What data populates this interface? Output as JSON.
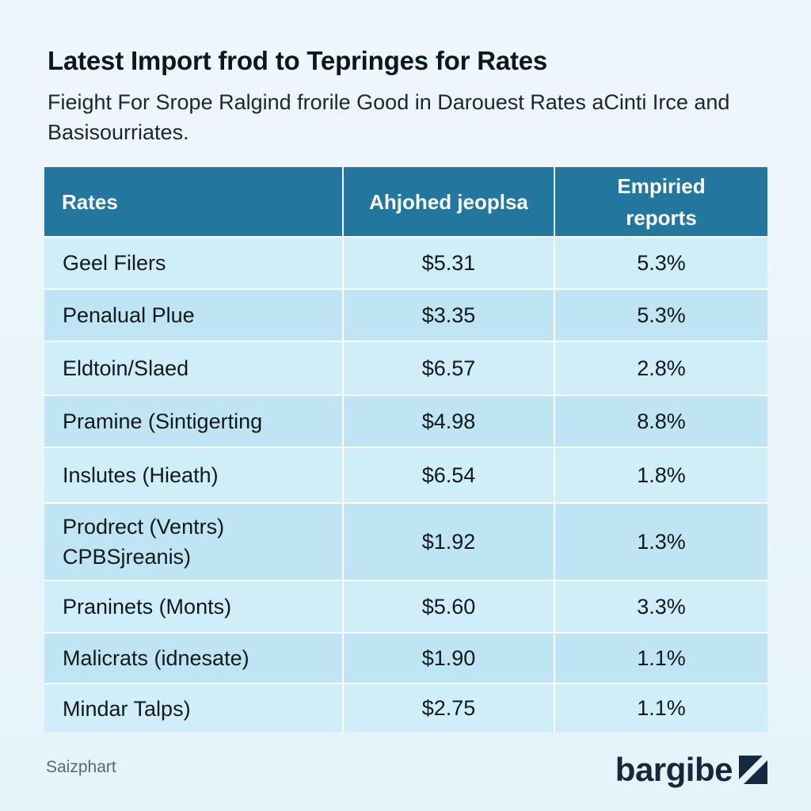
{
  "header": {
    "title": "Latest Import frod to Tepringes for Rates",
    "subtitle": "Fieight For Srope Ralgind frorile Good in Darouest Rates aCinti Irce and Basisourriates."
  },
  "chart_data": {
    "type": "table",
    "columns": [
      "Rates",
      "Ahjohed jeoplsa",
      "Empiried reports"
    ],
    "rows": [
      {
        "name": "Geel Filers",
        "price": "$5.31",
        "pct": "5.3%"
      },
      {
        "name": "Penalual Plue",
        "price": "$3.35",
        "pct": "5.3%"
      },
      {
        "name": "Eldtoin/Slaed",
        "price": "$6.57",
        "pct": "2.8%"
      },
      {
        "name": "Pramine (Sintigerting",
        "price": "$4.98",
        "pct": "8.8%"
      },
      {
        "name": "Inslutes (Hieath)",
        "price": "$6.54",
        "pct": "1.8%"
      },
      {
        "name": "Prodrect (Ventrs) CPBSjreanis)",
        "price": "$1.92",
        "pct": "1.3%"
      },
      {
        "name": "Praninets (Monts)",
        "price": "$5.60",
        "pct": "3.3%"
      },
      {
        "name": "Malicrats (idnesate)",
        "price": "$1.90",
        "pct": "1.1%"
      },
      {
        "name": "Mindar Talps)",
        "price": "$2.75",
        "pct": "1.1%"
      }
    ]
  },
  "footer": {
    "source": "Saizphart",
    "brand": "bargibe",
    "brand_icon": "slash-square-icon"
  },
  "colors": {
    "header_bg": "#23779f",
    "row_light": "#cfeef7",
    "row_dark": "#bfe4f2",
    "brand": "#16283c"
  }
}
